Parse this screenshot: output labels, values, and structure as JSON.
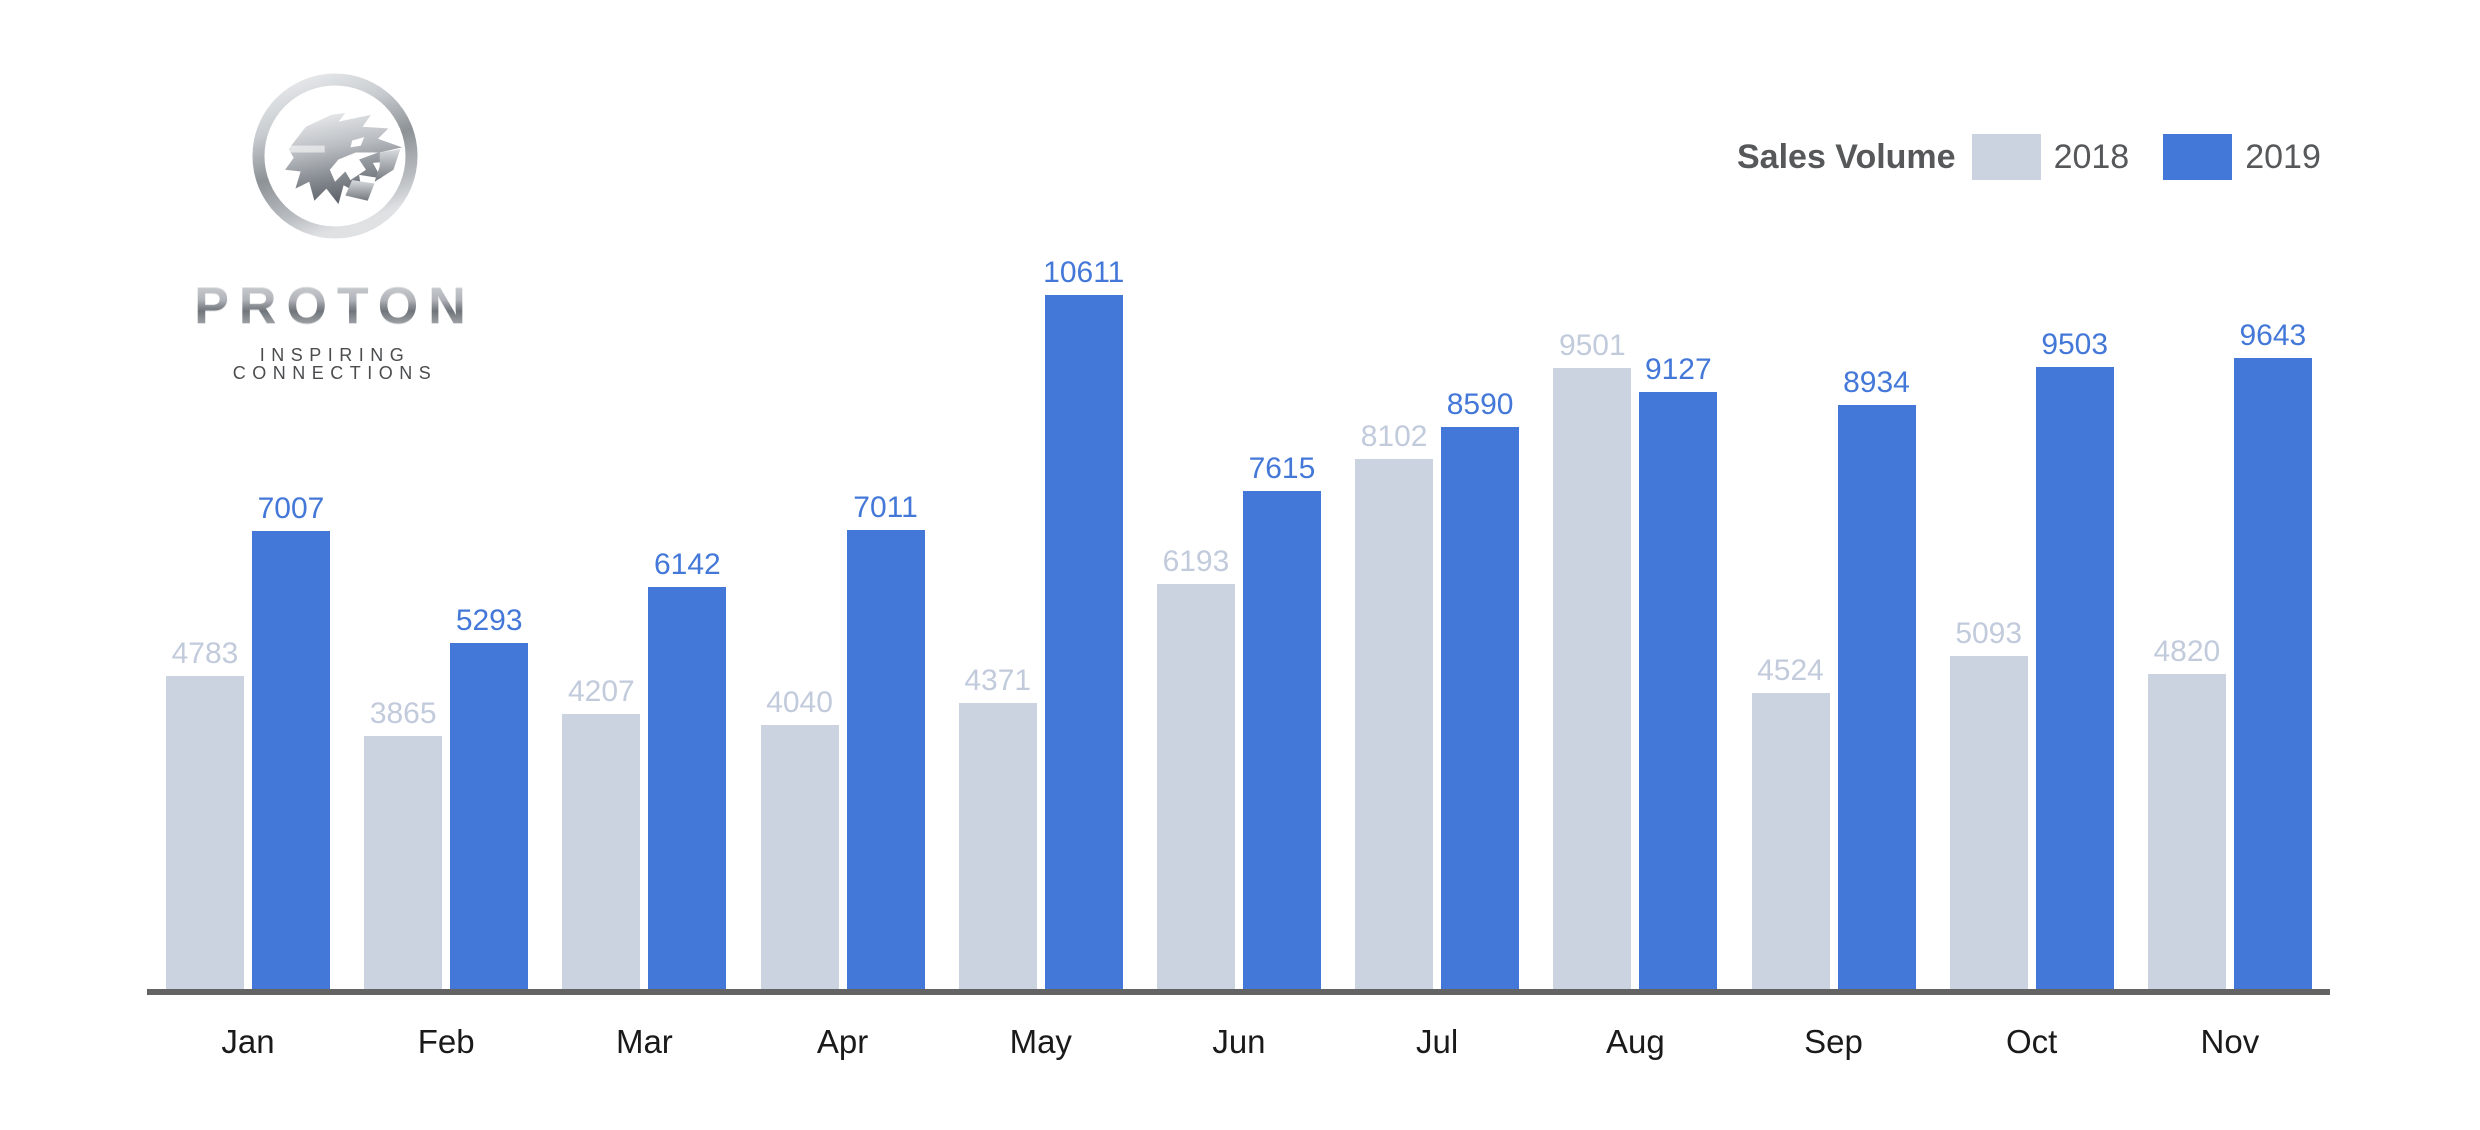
{
  "logo": {
    "brand": "PROTON",
    "tagline": "INSPIRING CONNECTIONS",
    "emblem_icon": "proton-tiger-emblem"
  },
  "legend": {
    "title": "Sales Volume",
    "series": [
      {
        "label": "2018",
        "color": "#cbd2e0"
      },
      {
        "label": "2019",
        "color": "#4478d8"
      }
    ]
  },
  "chart_data": {
    "type": "bar",
    "title": "Sales Volume",
    "categories": [
      "Jan",
      "Feb",
      "Mar",
      "Apr",
      "May",
      "Jun",
      "Jul",
      "Aug",
      "Sep",
      "Oct",
      "Nov"
    ],
    "series": [
      {
        "name": "2018",
        "color": "#cbd2e0",
        "values": [
          4783,
          3865,
          4207,
          4040,
          4371,
          6193,
          8102,
          9501,
          4524,
          5093,
          4820
        ]
      },
      {
        "name": "2019",
        "color": "#4478d8",
        "values": [
          7007,
          5293,
          6142,
          7011,
          10611,
          7615,
          8590,
          9127,
          8934,
          9503,
          9643
        ]
      }
    ],
    "ylim": [
      0,
      10611
    ],
    "grid": false,
    "axis_labels_shown": "x-only",
    "value_labels": true,
    "legend_position": "top-right"
  },
  "colors": {
    "bar_2018": "#cbd2e0",
    "bar_2019": "#4478d8",
    "label_2018": "#c2cbdc",
    "label_2019": "#4478d8",
    "axis_line": "#636363",
    "month_label": "#1a1a1a",
    "legend_text": "#57585a",
    "background": "#ffffff"
  }
}
